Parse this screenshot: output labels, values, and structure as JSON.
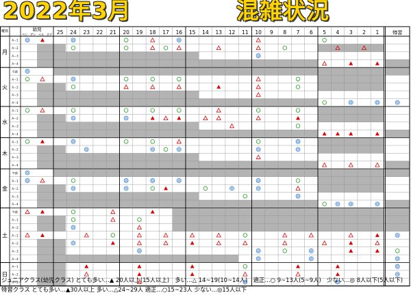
{
  "title": {
    "left": "2022年3月",
    "right": "混雑状況"
  },
  "header": {
    "corner": "曜日",
    "youji_top": "幼児",
    "youji_sub": [
      "ペン",
      "ア゙ン",
      "イル",
      "グア"
    ],
    "days": [
      "25",
      "24",
      "23",
      "22",
      "21",
      "20",
      "19",
      "18",
      "17",
      "16",
      "15",
      "14",
      "13",
      "12",
      "11",
      "10",
      "9",
      "8",
      "7",
      "6",
      "5",
      "4",
      "3",
      "2",
      "1"
    ],
    "special": "特習"
  },
  "row_labels": {
    "gozen": "午前",
    "a1": "A－1",
    "a2": "A－2",
    "a3": "A－3",
    "a4": "A－4"
  },
  "weekdays": [
    "月",
    "火",
    "水",
    "木",
    "金",
    "土",
    "日"
  ],
  "legend": {
    "line1": "ジュニアクラス(幼児クラス) とても多い…▲ 20人以上(15人以上)　多い…△ 14~19(10~14人)　適正…○ 9~13人(5~9人)　少ない…◎ 8人以下(5人以下)",
    "line2": "特習クラス とても多い…▲30人以上 多い…△24~29人 適正…○15~23人 少ない…◎15人以下"
  },
  "colors": {
    "title_fill": "#ffd400",
    "very_many": "#e00000",
    "many": "#e00000",
    "normal": "#22a022",
    "few": "#3a7fd8",
    "closed": "#b3b3b3"
  },
  "marks": {
    "very_many": "▲",
    "many": "△",
    "normal": "○",
    "few": "◎"
  },
  "rows": [
    {
      "day": "月",
      "label": "A－1",
      "youji": [
        "few",
        null,
        "very_many",
        null
      ],
      "y": [
        "g",
        "g",
        "g",
        "g",
        "g",
        "g",
        "g",
        "g",
        "g",
        "g",
        "g",
        "g",
        "g",
        "g",
        "g",
        "g",
        "g",
        "g",
        "g",
        "g",
        "g",
        "g",
        "g",
        "g",
        "g"
      ],
      "m": {
        "1": "few",
        "5": "normal",
        "7": "many",
        "9": "few",
        "15": "many",
        "20": "normal"
      },
      "sp": ""
    },
    {
      "day": "月",
      "label": "A－2",
      "youji": "gray",
      "m": {
        "1": "normal",
        "5": "normal",
        "7": "many",
        "8": "normal",
        "9": "many",
        "12": "many",
        "15": "many",
        "17": "normal",
        "21": "many",
        "23": "many"
      },
      "g": [
        20,
        21,
        22,
        23,
        24
      ],
      "sp": ""
    },
    {
      "day": "月",
      "label": "A－3",
      "youji": "gray",
      "m": {
        "15": "few"
      },
      "g": [
        0,
        1,
        2,
        3,
        4,
        5,
        6,
        7,
        8,
        9,
        10
      ],
      "sp": ""
    },
    {
      "day": "月",
      "label": "A－4",
      "youji": "gray",
      "m": {
        "20": "many",
        "22": "very_many",
        "24": "very_many"
      },
      "g": [
        0,
        1,
        2,
        3,
        4,
        5,
        6,
        7,
        8,
        9,
        10,
        11,
        12,
        13,
        14,
        15,
        16,
        17,
        18,
        19
      ],
      "sp": "g"
    },
    {
      "day": "火",
      "label": "午前",
      "youji": [
        "few",
        null,
        null,
        null
      ],
      "m": {},
      "g": [
        0,
        1,
        2,
        3,
        4,
        5,
        6,
        7,
        8,
        9,
        10,
        11,
        12,
        13,
        14,
        15,
        16,
        17,
        18,
        19,
        20,
        21,
        22,
        23,
        24
      ],
      "sp": "g"
    },
    {
      "day": "火",
      "label": "A－1",
      "youji": [
        "normal",
        null,
        "many",
        null
      ],
      "m": {
        "1": "few",
        "5": "normal",
        "7": "normal",
        "9": "normal",
        "15": "many",
        "18": "normal"
      },
      "g": [
        20,
        21,
        22,
        23,
        24
      ],
      "sp": ""
    },
    {
      "day": "火",
      "label": "A－2",
      "youji": "gray",
      "m": {
        "1": "normal",
        "5": "many",
        "7": "many",
        "9": "many",
        "12": "very_many",
        "15": "many",
        "18": "normal"
      },
      "g": [
        20,
        21,
        22,
        23,
        24
      ],
      "sp": ""
    },
    {
      "day": "火",
      "label": "A－3",
      "youji": "gray",
      "m": {
        "15": "many"
      },
      "g": [
        0,
        1,
        2,
        3,
        4,
        5,
        6,
        7,
        8,
        9,
        10
      ],
      "sp": ""
    },
    {
      "day": "火",
      "label": "A－4",
      "youji": "gray",
      "m": {
        "20": "normal",
        "22": "few",
        "24": "few"
      },
      "g": [
        0,
        1,
        2,
        3,
        4,
        5,
        6,
        7,
        8,
        9,
        10,
        11,
        12,
        13,
        14,
        15,
        16,
        17,
        18,
        19
      ],
      "sp": "few"
    },
    {
      "day": "水",
      "label": "A－1",
      "youji": [
        "normal",
        null,
        "many",
        null
      ],
      "m": {
        "1": "normal",
        "5": "normal",
        "7": "normal",
        "9": "normal",
        "12": "many",
        "15": "normal",
        "18": "normal"
      },
      "g": [
        20,
        21,
        22,
        23,
        24
      ],
      "sp": ""
    },
    {
      "day": "水",
      "label": "A－2",
      "youji": "gray",
      "m": {
        "1": "few",
        "5": "few",
        "7": "very_many",
        "8": "many",
        "9": "very_many",
        "11": "many",
        "12": "many",
        "15": "many",
        "18": "very_many"
      },
      "g": [
        20,
        21,
        22,
        23,
        24
      ],
      "sp": ""
    },
    {
      "day": "水",
      "label": "A－3",
      "youji": "gray",
      "m": {
        "13": "many",
        "18": "normal"
      },
      "g": [
        0,
        1,
        2,
        3,
        4,
        5,
        6,
        7,
        8,
        9,
        10
      ],
      "sp": ""
    },
    {
      "day": "水",
      "label": "A－4",
      "youji": "gray",
      "m": {
        "20": "very_many",
        "21": "very_many",
        "22": "very_many",
        "24": "very_many"
      },
      "g": [
        0,
        1,
        2,
        3,
        4,
        5,
        6,
        7,
        8,
        9,
        10,
        11,
        12,
        13,
        14,
        15,
        16,
        17,
        18,
        19
      ],
      "sp": "g"
    },
    {
      "day": "木",
      "label": "A－1",
      "youji": [
        "normal",
        null,
        "very_many",
        null
      ],
      "m": {
        "1": "few",
        "5": "normal",
        "7": "normal",
        "9": "many",
        "15": "normal",
        "18": "few"
      },
      "g": [
        20,
        21,
        22,
        23,
        24
      ],
      "sp": ""
    },
    {
      "day": "木",
      "label": "A－2",
      "youji": "gray",
      "m": {
        "2": "few",
        "7": "few",
        "8": "normal",
        "9": "few",
        "15": "few",
        "18": "few"
      },
      "g": [
        20,
        21,
        22,
        23,
        24
      ],
      "sp": ""
    },
    {
      "day": "木",
      "label": "A－3",
      "youji": "gray",
      "m": {
        "15": "many"
      },
      "g": [
        0,
        1,
        2,
        3,
        4,
        5,
        6,
        7,
        8,
        9,
        10
      ],
      "sp": ""
    },
    {
      "day": "木",
      "label": "A－4",
      "youji": "gray",
      "m": {
        "20": "many",
        "22": "many",
        "24": "many"
      },
      "g": [
        0,
        1,
        2,
        3,
        4,
        5,
        6,
        7,
        8,
        9,
        10,
        11,
        12,
        13,
        14,
        15,
        16,
        17,
        18,
        19
      ],
      "sp": "g"
    },
    {
      "day": "金",
      "label": "午前",
      "youji": [
        "few",
        null,
        null,
        null
      ],
      "m": {},
      "g": [
        0,
        1,
        2,
        3,
        4,
        5,
        6,
        7,
        8,
        9,
        10,
        11,
        12,
        13,
        14,
        15,
        16,
        17,
        18,
        19,
        20,
        21,
        22,
        23,
        24
      ],
      "sp": "g"
    },
    {
      "day": "金",
      "label": "A－1",
      "youji": [
        "few",
        null,
        "many",
        null
      ],
      "m": {
        "1": "normal",
        "5": "few",
        "7": "few",
        "9": "few",
        "15": "few",
        "18": "normal"
      },
      "g": [
        20,
        21,
        22,
        23,
        24
      ],
      "sp": ""
    },
    {
      "day": "金",
      "label": "A－2",
      "youji": "gray",
      "m": {
        "1": "few",
        "5": "few",
        "7": "normal",
        "8": "very_many",
        "11": "normal",
        "13": "few",
        "15": "few",
        "18": "many"
      },
      "g": [
        20,
        21,
        22,
        23,
        24
      ],
      "sp": ""
    },
    {
      "day": "金",
      "label": "A－3",
      "youji": "gray",
      "m": {
        "14": "normal",
        "18": "few"
      },
      "g": [
        0,
        1,
        2,
        3,
        4,
        5,
        6,
        7,
        8,
        9,
        10
      ],
      "sp": ""
    },
    {
      "day": "金",
      "label": "A－4",
      "youji": "gray",
      "m": {
        "20": "normal",
        "21": "few",
        "22": "few",
        "24": "few"
      },
      "g": [
        0,
        1,
        2,
        3,
        4,
        5,
        6,
        7,
        8,
        9,
        10,
        11,
        12,
        13,
        14,
        15,
        16,
        17,
        18,
        19
      ],
      "sp": "g"
    },
    {
      "day": "土",
      "label": "午前",
      "youji": [
        "many",
        null,
        "very_many",
        null
      ],
      "m": {
        "1": "normal",
        "4": "many",
        "7": "very_many"
      },
      "g": [
        9,
        10,
        11,
        12,
        13,
        14,
        15,
        16,
        17,
        18,
        19,
        20,
        21,
        22,
        23,
        24
      ],
      "sp": "g"
    },
    {
      "day": "土",
      "label": "A－1",
      "youji": "gray",
      "m": {
        "1": "normal",
        "4": "many",
        "6": "normal"
      },
      "g": [
        9,
        10,
        11,
        12,
        13,
        14,
        15,
        16,
        17,
        18,
        19,
        20,
        21,
        22,
        23,
        24
      ],
      "sp": "g"
    },
    {
      "day": "土",
      "label": "A－2",
      "youji": "gray",
      "m": {
        "1": "few",
        "6": "many"
      },
      "g": [
        9,
        10,
        11,
        12,
        13,
        14,
        15,
        16,
        17,
        18,
        19,
        20,
        21,
        22,
        23,
        24
      ],
      "sp": "g"
    },
    {
      "day": "土",
      "label": "A－1",
      "youji": [
        "many",
        null,
        "very_many",
        null
      ],
      "m": {
        "2": "many",
        "4": "normal",
        "6": "many",
        "8": "many",
        "10": "many",
        "12": "many",
        "14": "normal",
        "17": "many",
        "19": "many",
        "22": "many",
        "24": "very_many"
      },
      "g": [],
      "sp": "few"
    },
    {
      "day": "土",
      "label": "A－2",
      "youji": "gray",
      "m": {
        "1": "few",
        "4": "very_many",
        "6": "many",
        "8": "many",
        "10": "very_many",
        "12": "many",
        "14": "many",
        "17": "many",
        "20": "many",
        "22": "very_many",
        "24": "many"
      },
      "g": [],
      "sp": ""
    },
    {
      "day": "土",
      "label": "A－3",
      "youji": "gray",
      "m": {
        "6": "few",
        "15": "few",
        "17": "normal",
        "19": "few",
        "22": "very_many",
        "24": "very_many"
      },
      "g": [],
      "sp": "normal"
    },
    {
      "day": "土",
      "label": "A－4",
      "youji": "gray",
      "m": {
        "15": "few",
        "19": "few"
      },
      "g": [
        0,
        1,
        2,
        3,
        4,
        5,
        6,
        7,
        8,
        9,
        10,
        11,
        12,
        13
      ],
      "sp": "few"
    },
    {
      "day": "日",
      "label": "A－1",
      "youji": "gray",
      "m": {
        "2": "very_many",
        "6": "very_many",
        "10": "very_many",
        "14": "normal",
        "18": "very_many",
        "21": "very_many"
      },
      "g": [],
      "sp": "few"
    },
    {
      "day": "日",
      "label": "A－2",
      "youji": "gray",
      "m": {
        "2": "many",
        "6": "very_many",
        "10": "very_many",
        "14": "many",
        "18": "many",
        "21": "very_many"
      },
      "g": [],
      "sp": "few"
    },
    {
      "day": "日",
      "label": "A－3",
      "youji": "gray",
      "m": {
        "6": "many",
        "14": "few",
        "21": "few"
      },
      "g": [],
      "sp": ""
    }
  ]
}
